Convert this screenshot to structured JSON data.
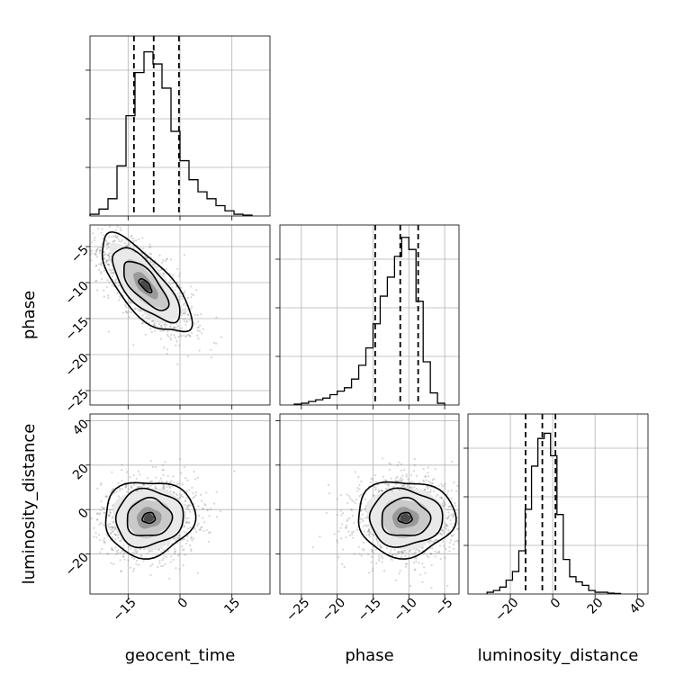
{
  "chart_data": {
    "type": "corner",
    "parameters": [
      "geocent_time",
      "phase",
      "luminosity_distance"
    ],
    "panels": [
      {
        "name": "geocent_time",
        "kind": "histogram",
        "xlim": [
          -26,
          26
        ],
        "xticks": [
          -15,
          0,
          15
        ],
        "xtick_labels": [],
        "ymax": 1.0,
        "bin_edges": [
          -26,
          -23.4,
          -20.8,
          -18.2,
          -15.6,
          -13.0,
          -10.4,
          -7.8,
          -5.2,
          -2.6,
          0,
          2.6,
          5.2,
          7.8,
          10.4,
          13.0,
          15.6,
          18.2,
          20.8
        ],
        "counts": [
          0.01,
          0.04,
          0.1,
          0.29,
          0.58,
          0.83,
          0.95,
          0.88,
          0.74,
          0.49,
          0.32,
          0.21,
          0.14,
          0.1,
          0.06,
          0.03,
          0.01,
          0.005
        ],
        "quantiles": [
          -13.3,
          -7.6,
          -0.3
        ]
      },
      {
        "name": "phase",
        "kind": "histogram",
        "xlim": [
          -28,
          -3
        ],
        "xticks": [
          -25,
          -20,
          -15,
          -10,
          -5
        ],
        "xtick_labels": [],
        "ymax": 1.0,
        "bin_edges": [
          -26,
          -25,
          -24,
          -23,
          -22,
          -21,
          -20,
          -19,
          -18,
          -17,
          -16,
          -15,
          -14,
          -13,
          -12,
          -11,
          -10,
          -9,
          -8,
          -7,
          -6,
          -5
        ],
        "counts": [
          0.005,
          0.01,
          0.02,
          0.03,
          0.04,
          0.06,
          0.08,
          0.1,
          0.15,
          0.23,
          0.33,
          0.47,
          0.63,
          0.74,
          0.86,
          0.97,
          0.9,
          0.6,
          0.25,
          0.07,
          0.01
        ],
        "quantiles": [
          -14.7,
          -11.2,
          -8.7
        ]
      },
      {
        "name": "luminosity_distance",
        "kind": "histogram",
        "xlim": [
          -40,
          45
        ],
        "xticks": [
          -20,
          0,
          20,
          40
        ],
        "xtick_labels": [
          "−20",
          "0",
          "20",
          "40"
        ],
        "xlabel": "luminosity_distance",
        "ymax": 1.0,
        "bin_edges": [
          -31,
          -28,
          -25,
          -22,
          -19,
          -16,
          -13,
          -10,
          -7,
          -4,
          -1,
          2,
          5,
          8,
          11,
          14,
          17,
          20,
          23,
          26,
          29,
          32
        ],
        "counts": [
          0.01,
          0.02,
          0.04,
          0.08,
          0.13,
          0.25,
          0.49,
          0.74,
          0.9,
          0.93,
          0.8,
          0.46,
          0.2,
          0.1,
          0.07,
          0.05,
          0.02,
          0.01,
          0.01,
          0.005,
          0.003
        ],
        "quantiles": [
          -12.8,
          -4.9,
          1.3
        ]
      },
      {
        "name": "phase vs geocent_time",
        "kind": "density",
        "xlim": [
          -26,
          26
        ],
        "ylim": [
          -27,
          -2
        ],
        "xticks": [
          -15,
          0,
          15
        ],
        "yticks": [
          -25,
          -20,
          -15,
          -10,
          -5
        ],
        "xtick_labels": [],
        "ytick_labels": [
          "−25",
          "−20",
          "−15",
          "−10",
          "−5"
        ],
        "ylabel": "phase",
        "center": [
          -10.0,
          -10.4
        ],
        "sigma": [
          6.5,
          3.4
        ],
        "correlation": -0.72
      },
      {
        "name": "luminosity_distance vs geocent_time",
        "kind": "density",
        "xlim": [
          -26,
          26
        ],
        "ylim": [
          -38,
          43
        ],
        "xticks": [
          -15,
          0,
          15
        ],
        "yticks": [
          -20,
          0,
          20,
          40
        ],
        "xtick_labels": [
          "−15",
          "0",
          "15"
        ],
        "ytick_labels": [
          "−20",
          "0",
          "20",
          "40"
        ],
        "xlabel": "geocent_time",
        "ylabel": "luminosity_distance",
        "center": [
          -9.0,
          -3.8
        ],
        "sigma": [
          6.5,
          8.5
        ],
        "correlation": 0.05
      },
      {
        "name": "luminosity_distance vs phase",
        "kind": "density",
        "xlim": [
          -28,
          -3
        ],
        "ylim": [
          -38,
          43
        ],
        "xticks": [
          -25,
          -20,
          -15,
          -10,
          -5
        ],
        "yticks": [
          -20,
          0,
          20,
          40
        ],
        "xtick_labels": [
          "−25",
          "−20",
          "−15",
          "−10",
          "−5"
        ],
        "ytick_labels": [],
        "xlabel": "phase",
        "center": [
          -10.5,
          -3.8
        ],
        "sigma": [
          3.4,
          8.5
        ],
        "correlation": 0.0
      }
    ],
    "grid": true,
    "contour_levels": [
      "1-sigma",
      "1.5-sigma",
      "2-sigma"
    ]
  }
}
